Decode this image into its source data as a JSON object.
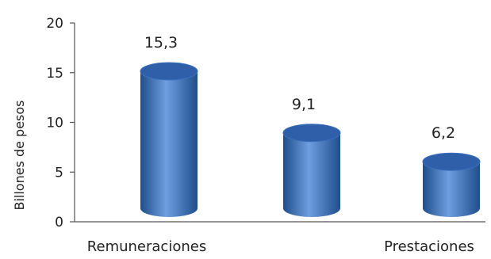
{
  "chart_data": {
    "type": "bar",
    "ylabel": "Billones de pesos",
    "ylim": [
      0,
      20
    ],
    "yticks": [
      0,
      5,
      10,
      15,
      20
    ],
    "categories": [
      "Remuneraciones",
      "",
      "Prestaciones"
    ],
    "values": [
      15.3,
      9.1,
      6.2
    ],
    "data_labels": [
      "15,3",
      "9,1",
      "6,2"
    ],
    "grid": false,
    "legend": "none",
    "bar_style": "3d-cylinder",
    "colors": {
      "bar_dark": "#1f4e8c",
      "bar_mid": "#3a6fc0",
      "bar_light": "#6f9ee0",
      "bar_top": "#2f5fa8",
      "axis": "#555555"
    }
  }
}
